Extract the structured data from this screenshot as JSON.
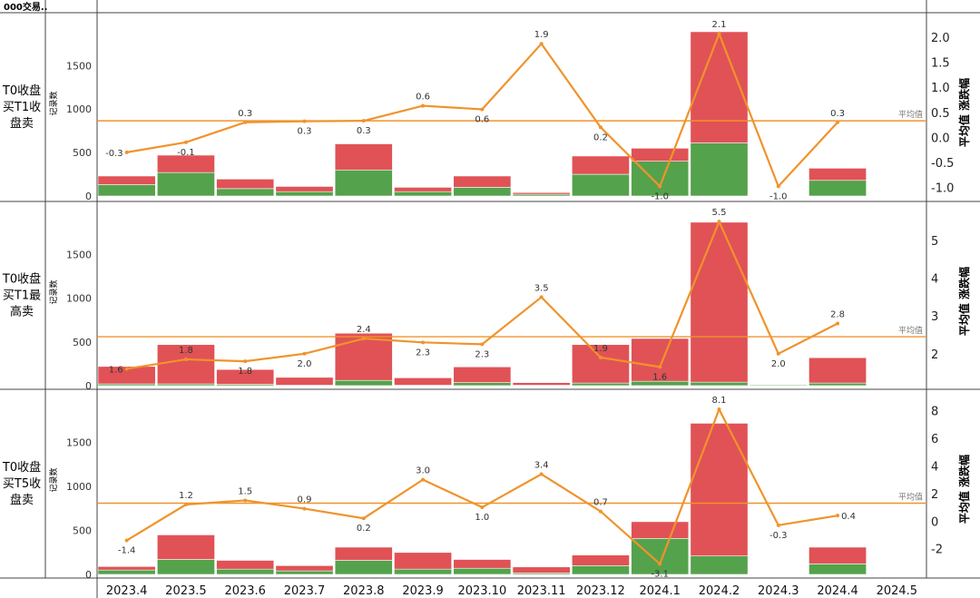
{
  "header": {
    "title": "000交易.."
  },
  "legend_avg_label": "平均值",
  "months": [
    "2023.4",
    "2023.5",
    "2023.6",
    "2023.7",
    "2023.8",
    "2023.9",
    "2023.10",
    "2023.11",
    "2023.12",
    "2024.1",
    "2024.2",
    "2024.3",
    "2024.4",
    "2024.5"
  ],
  "colors": {
    "up": "#e05256",
    "down": "#55a24c",
    "line": "#f0932b",
    "avg": "#f0932b",
    "grid": "#d9d9d9"
  },
  "chart_data": [
    {
      "type": "bar",
      "row_label": [
        "T0收盘",
        "买T1收",
        "盘卖"
      ],
      "ylabel": "记录数",
      "y2label": "平均值 涨跌幅",
      "ylim": [
        0,
        1900
      ],
      "yticks": [
        0,
        500,
        1000,
        1500
      ],
      "y2lim": [
        -1.1,
        2.2
      ],
      "y2ticks": [
        "-1.0",
        "-0.5",
        "0.0",
        "0.5",
        "1.0",
        "1.5",
        "2.0"
      ],
      "avg_value": 0.33,
      "series": [
        {
          "name": "",
          "color_key": "down",
          "values": [
            130,
            270,
            85,
            50,
            300,
            50,
            100,
            20,
            250,
            400,
            610,
            0,
            180,
            0
          ]
        },
        {
          "name": "",
          "color_key": "up",
          "values": [
            100,
            200,
            110,
            60,
            300,
            50,
            130,
            20,
            210,
            150,
            1280,
            0,
            140,
            0
          ]
        }
      ],
      "line": {
        "values": [
          -0.3,
          -0.1,
          0.3,
          0.32,
          0.33,
          0.63,
          0.56,
          1.87,
          0.2,
          -0.98,
          2.07,
          -0.98,
          0.3,
          null
        ],
        "labels": [
          "-0.3",
          "-0.1",
          "0.3",
          "0.3",
          "0.3",
          "0.6",
          "0.6",
          "1.9",
          "0.2",
          "-1.0",
          "2.1",
          "-1.0",
          "0.3",
          ""
        ],
        "label_pos": [
          "l",
          "b",
          "t",
          "b",
          "b",
          "t",
          "b",
          "t",
          "b",
          "b",
          "t",
          "b",
          "t",
          ""
        ]
      }
    },
    {
      "type": "bar",
      "row_label": [
        "T0收盘",
        "买T1最",
        "高卖"
      ],
      "ylabel": "记录数",
      "y2label": "平均值 涨跌幅",
      "ylim": [
        0,
        1900
      ],
      "yticks": [
        0,
        500,
        1000,
        1500
      ],
      "y2lim": [
        1.25,
        5.65
      ],
      "y2ticks": [
        "2",
        "3",
        "4",
        "5"
      ],
      "avg_value": 2.45,
      "series": [
        {
          "name": "",
          "color_key": "down",
          "values": [
            20,
            20,
            15,
            5,
            60,
            5,
            35,
            5,
            30,
            50,
            40,
            10,
            30,
            0
          ]
        },
        {
          "name": "",
          "color_key": "up",
          "values": [
            200,
            450,
            170,
            90,
            540,
            85,
            180,
            30,
            440,
            490,
            1830,
            0,
            290,
            0
          ]
        }
      ],
      "line": {
        "values": [
          1.6,
          1.85,
          1.8,
          2.0,
          2.4,
          2.3,
          2.25,
          3.5,
          1.9,
          1.65,
          5.5,
          2.0,
          2.8,
          null
        ],
        "labels": [
          "1.6",
          "1.8",
          "1.8",
          "2.0",
          "2.4",
          "2.3",
          "2.3",
          "3.5",
          "1.9",
          "1.6",
          "5.5",
          "2.0",
          "2.8",
          ""
        ],
        "label_pos": [
          "l",
          "t",
          "b",
          "b",
          "t",
          "b",
          "b",
          "t",
          "t",
          "b",
          "t",
          "b",
          "t",
          ""
        ]
      }
    },
    {
      "type": "bar",
      "row_label": [
        "T0收盘",
        "买T5收",
        "盘卖"
      ],
      "ylabel": "记录数",
      "y2label": "平均值 涨跌幅",
      "ylim": [
        0,
        1900
      ],
      "yticks": [
        0,
        500,
        1000,
        1500
      ],
      "y2lim": [
        -3.6,
        8.5
      ],
      "y2ticks": [
        "-2",
        "0",
        "2",
        "4",
        "6",
        "8"
      ],
      "avg_value": 1.3,
      "series": [
        {
          "name": "",
          "color_key": "down",
          "values": [
            50,
            170,
            60,
            40,
            160,
            60,
            70,
            15,
            100,
            410,
            210,
            0,
            120,
            0
          ]
        },
        {
          "name": "",
          "color_key": "up",
          "values": [
            40,
            280,
            100,
            60,
            150,
            190,
            100,
            70,
            120,
            190,
            1510,
            0,
            190,
            0
          ]
        }
      ],
      "line": {
        "values": [
          -1.4,
          1.2,
          1.5,
          0.9,
          0.2,
          3.0,
          1.0,
          3.4,
          0.7,
          -3.1,
          8.1,
          -0.3,
          0.4,
          null
        ],
        "labels": [
          "-1.4",
          "1.2",
          "1.5",
          "0.9",
          "0.2",
          "3.0",
          "1.0",
          "3.4",
          "0.7",
          "-3.1",
          "8.1",
          "-0.3",
          "0.4",
          ""
        ],
        "label_pos": [
          "b",
          "t",
          "t",
          "t",
          "b",
          "t",
          "b",
          "t",
          "t",
          "b",
          "t",
          "b",
          "r",
          ""
        ]
      }
    }
  ]
}
